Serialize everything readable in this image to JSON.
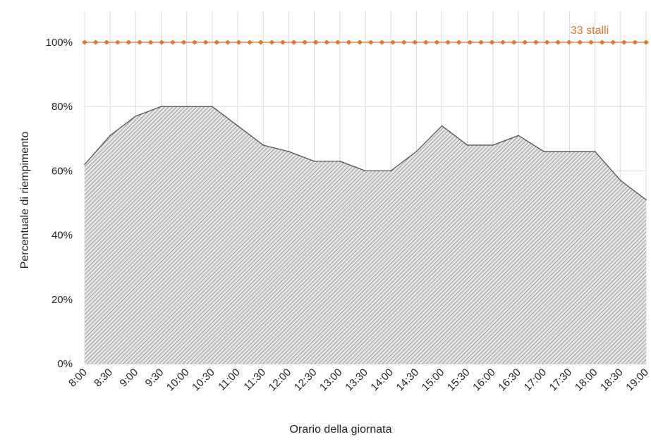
{
  "chart_data": {
    "type": "area",
    "title": "",
    "xlabel": "Orario della giornata",
    "ylabel": "Percentuale di riempimento",
    "ylim": [
      0,
      100
    ],
    "yticks": [
      "0%",
      "20%",
      "40%",
      "60%",
      "80%",
      "100%"
    ],
    "categories": [
      "8:00",
      "8:30",
      "9:00",
      "9:30",
      "10:00",
      "10:30",
      "11:00",
      "11:30",
      "12:00",
      "12:30",
      "13:00",
      "13:30",
      "14:00",
      "14:30",
      "15:00",
      "15:30",
      "16:00",
      "16:30",
      "17:00",
      "17:30",
      "18:00",
      "18:30",
      "19:00"
    ],
    "series": [
      {
        "values": [
          62,
          71,
          77,
          80,
          80,
          80,
          74,
          68,
          66,
          63,
          63,
          60,
          60,
          66,
          74,
          68,
          68,
          71,
          66,
          66,
          66,
          57,
          51
        ]
      }
    ],
    "reference_line": {
      "value": 100,
      "label": "33 stalli",
      "color": "#e8742a",
      "style": "dotted"
    },
    "grid": true,
    "fill_color": "#bfbfbf",
    "line_color": "#555555"
  }
}
